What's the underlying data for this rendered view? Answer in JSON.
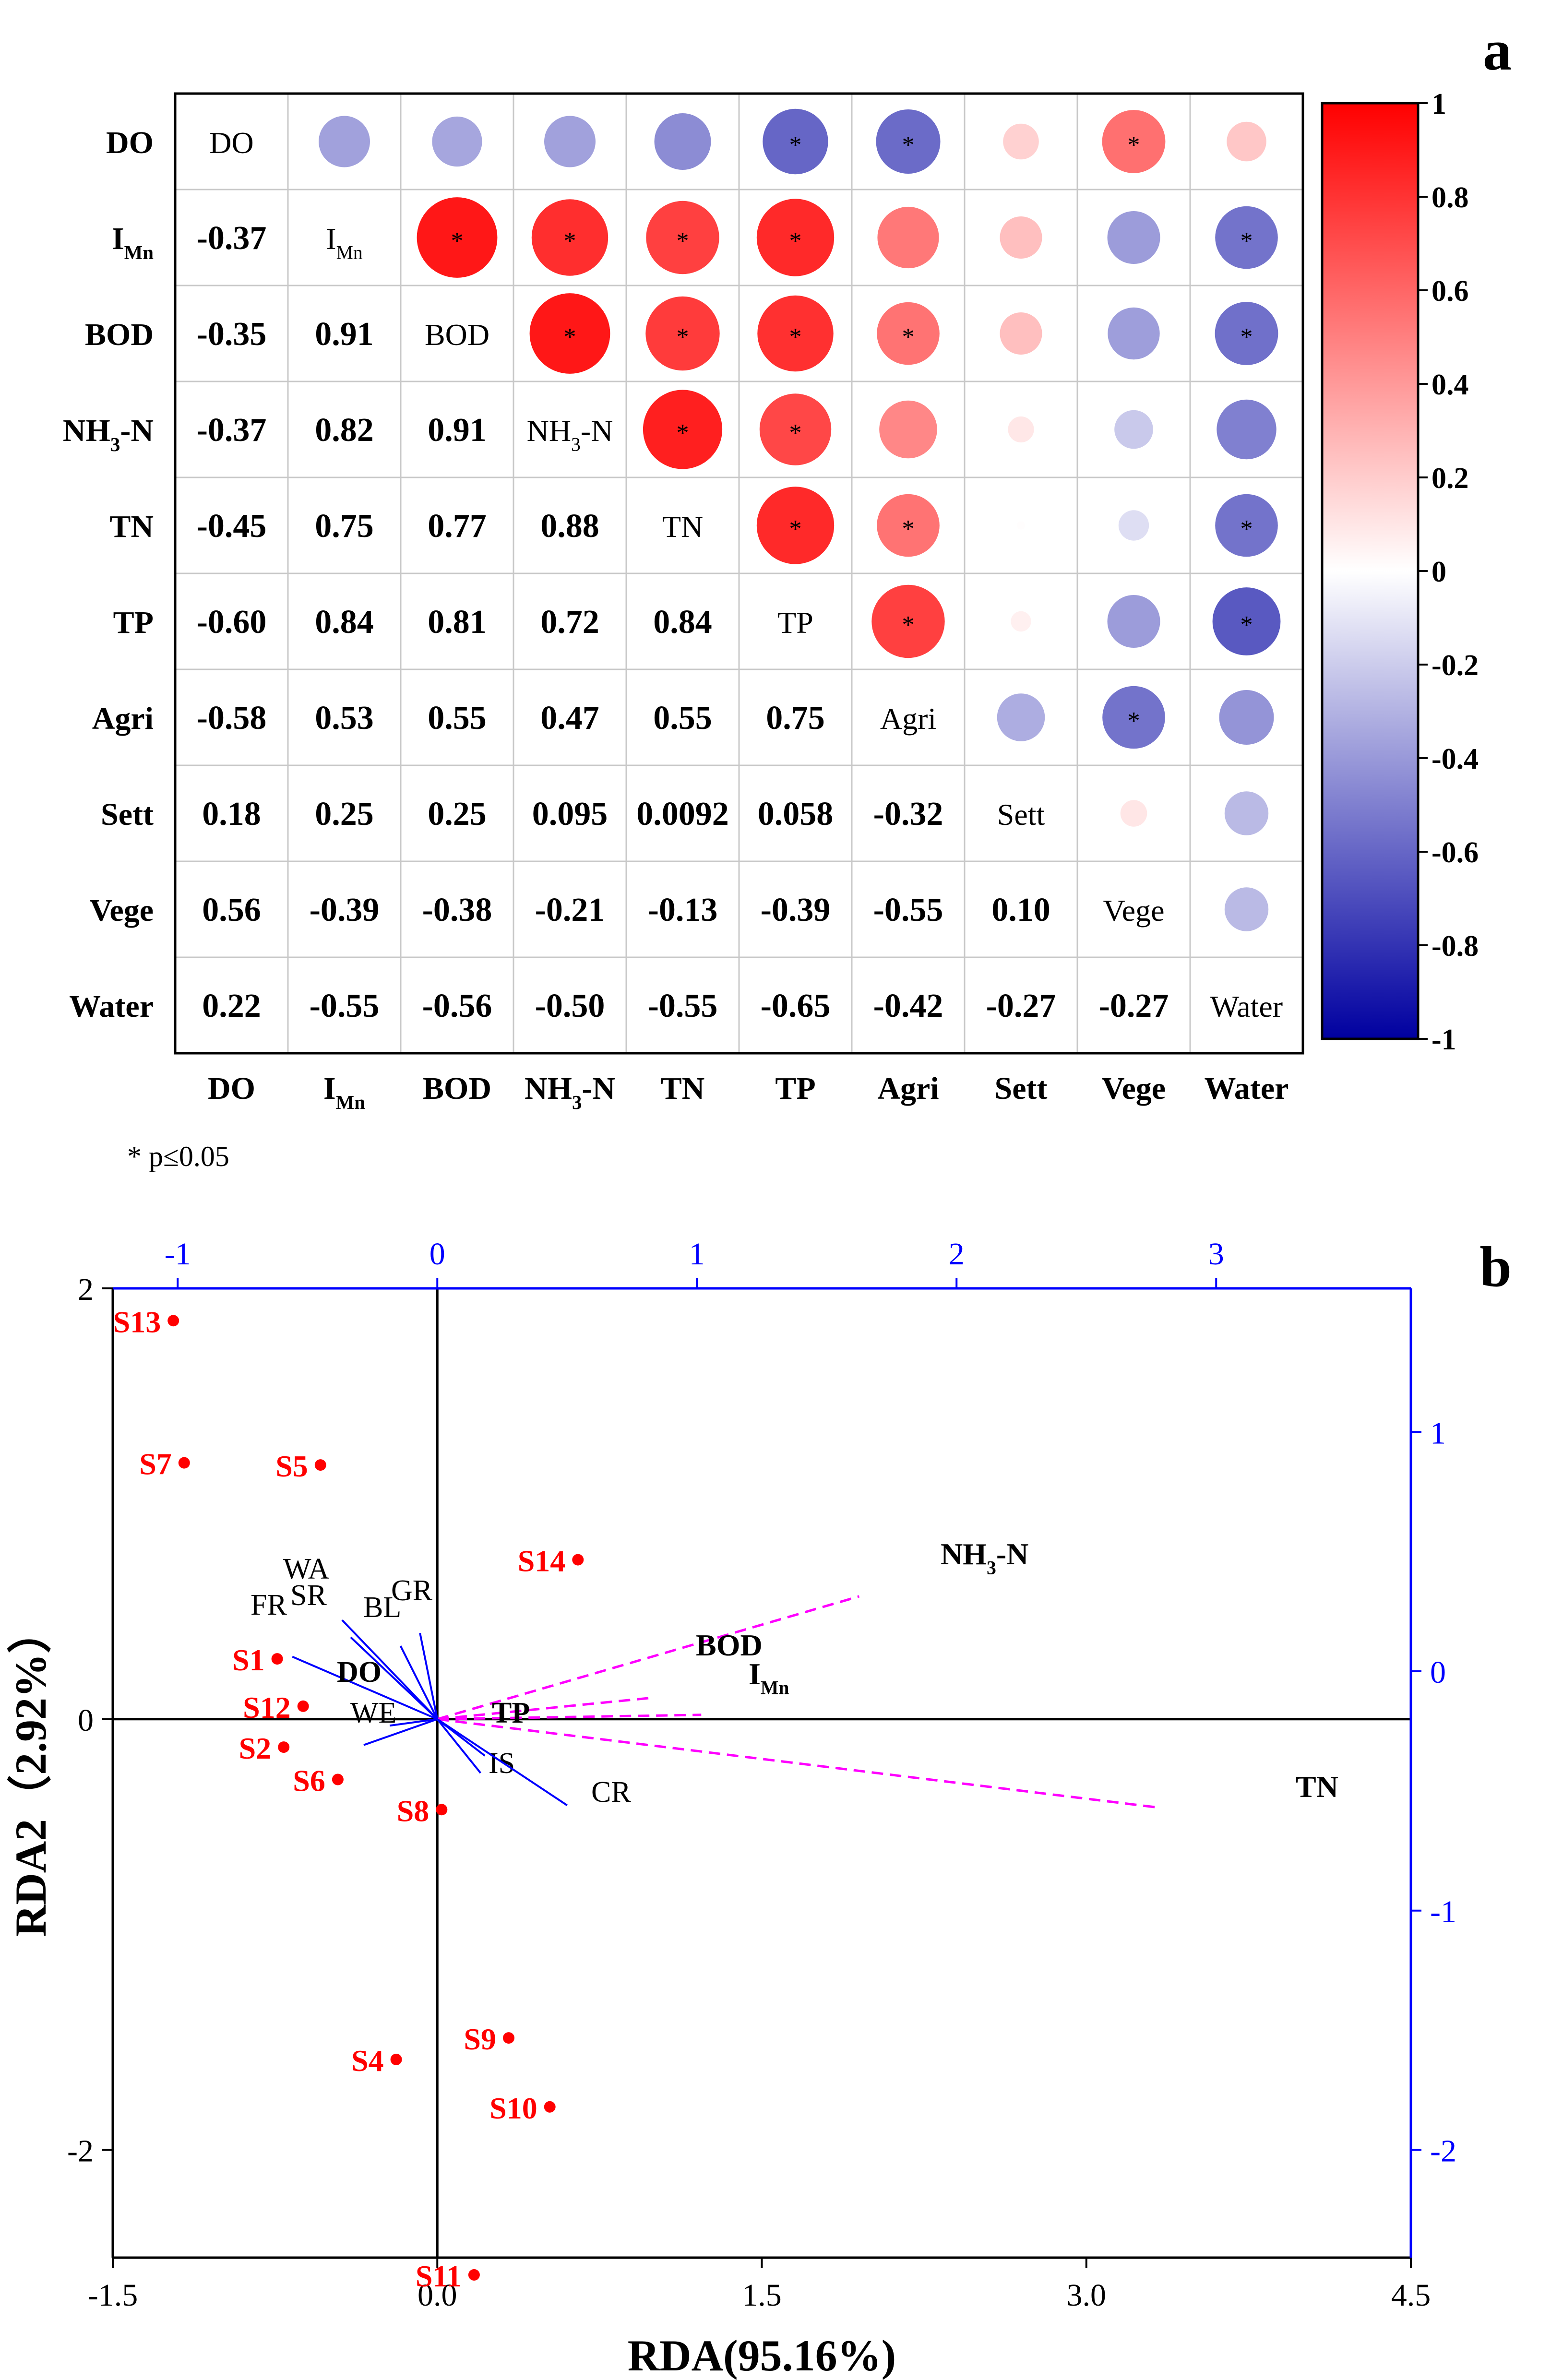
{
  "panels": {
    "a": {
      "letter": "a"
    },
    "b": {
      "letter": "b"
    }
  },
  "colors": {
    "positive": "#ff0000",
    "negative": "#0000a0",
    "neutral": "#ffffff",
    "site_points": "#ff0000",
    "top_right_axes": "#0000ff",
    "response_arrows": "#ff00ff",
    "explanatory_arrows": "#0000ff"
  },
  "chart_data": [
    {
      "panel": "a",
      "type": "heatmap",
      "variables": [
        "DO",
        "I_Mn",
        "BOD",
        "NH3-N",
        "TN",
        "TP",
        "Agri",
        "Sett",
        "Vege",
        "Water"
      ],
      "labels": [
        {
          "text": "DO",
          "sub": "",
          "tail": ""
        },
        {
          "text": "I",
          "sub": "Mn",
          "tail": ""
        },
        {
          "text": "BOD",
          "sub": "",
          "tail": ""
        },
        {
          "text": "NH",
          "sub": "3",
          "tail": "-N"
        },
        {
          "text": "TN",
          "sub": "",
          "tail": ""
        },
        {
          "text": "TP",
          "sub": "",
          "tail": ""
        },
        {
          "text": "Agri",
          "sub": "",
          "tail": ""
        },
        {
          "text": "Sett",
          "sub": "",
          "tail": ""
        },
        {
          "text": "Vege",
          "sub": "",
          "tail": ""
        },
        {
          "text": "Water",
          "sub": "",
          "tail": ""
        }
      ],
      "lower_values": [
        [
          null,
          null,
          null,
          null,
          null,
          null,
          null,
          null,
          null,
          null
        ],
        [
          "-0.37",
          null,
          null,
          null,
          null,
          null,
          null,
          null,
          null,
          null
        ],
        [
          "-0.35",
          "0.91",
          null,
          null,
          null,
          null,
          null,
          null,
          null,
          null
        ],
        [
          "-0.37",
          "0.82",
          "0.91",
          null,
          null,
          null,
          null,
          null,
          null,
          null
        ],
        [
          "-0.45",
          "0.75",
          "0.77",
          "0.88",
          null,
          null,
          null,
          null,
          null,
          null
        ],
        [
          "-0.60",
          "0.84",
          "0.81",
          "0.72",
          "0.84",
          null,
          null,
          null,
          null,
          null
        ],
        [
          "-0.58",
          "0.53",
          "0.55",
          "0.47",
          "0.55",
          "0.75",
          null,
          null,
          null,
          null
        ],
        [
          "0.18",
          "0.25",
          "0.25",
          "0.095",
          "0.0092",
          "0.058",
          "-0.32",
          null,
          null,
          null
        ],
        [
          "0.56",
          "-0.39",
          "-0.38",
          "-0.21",
          "-0.13",
          "-0.39",
          "-0.55",
          "0.10",
          null,
          null
        ],
        [
          "0.22",
          "-0.55",
          "-0.56",
          "-0.50",
          "-0.55",
          "-0.65",
          "-0.42",
          "-0.27",
          "-0.27",
          null
        ]
      ],
      "significant_pairs": [
        [
          0,
          5
        ],
        [
          0,
          6
        ],
        [
          0,
          8
        ],
        [
          1,
          2
        ],
        [
          1,
          3
        ],
        [
          1,
          4
        ],
        [
          1,
          5
        ],
        [
          1,
          9
        ],
        [
          2,
          3
        ],
        [
          2,
          4
        ],
        [
          2,
          5
        ],
        [
          2,
          6
        ],
        [
          2,
          9
        ],
        [
          3,
          4
        ],
        [
          3,
          5
        ],
        [
          4,
          5
        ],
        [
          4,
          6
        ],
        [
          4,
          9
        ],
        [
          5,
          6
        ],
        [
          5,
          9
        ],
        [
          6,
          8
        ]
      ],
      "significance_mark": "*",
      "significance_note": "* p≤0.05",
      "colorbar": {
        "range": [
          -1,
          1
        ],
        "tick_labels": [
          "1",
          "0.8",
          "0.6",
          "0.4",
          "0.2",
          "0",
          "-0.2",
          "-0.4",
          "-0.6",
          "-0.8",
          "-1"
        ]
      }
    },
    {
      "panel": "b",
      "type": "scatter",
      "xlabel": "RDA(95.16%)",
      "ylabel": "RDA2（2.92%）",
      "xlim": [
        -1.5,
        4.5
      ],
      "ylim": [
        -2.5,
        2.0
      ],
      "xticks": [
        -1.5,
        0.0,
        1.5,
        3.0,
        4.5
      ],
      "xtick_labels": [
        "-1.5",
        "0.0",
        "1.5",
        "3.0",
        "4.5"
      ],
      "yticks": [
        2,
        0,
        -2
      ],
      "ytick_labels": [
        "2",
        "0",
        "-2"
      ],
      "top_axis": {
        "range": [
          -1.25,
          3.75
        ],
        "ticks": [
          -1,
          0,
          1,
          2,
          3
        ],
        "tick_labels": [
          "-1",
          "0",
          "1",
          "2",
          "3"
        ]
      },
      "right_axis": {
        "range": [
          -2.45,
          1.6
        ],
        "ticks": [
          1,
          0,
          -1,
          -2
        ],
        "tick_labels": [
          "1",
          "0",
          "-1",
          "-2"
        ]
      },
      "sites": [
        {
          "name": "S13",
          "x": -1.22,
          "y": 1.85
        },
        {
          "name": "S7",
          "x": -1.17,
          "y": 1.19
        },
        {
          "name": "S5",
          "x": -0.54,
          "y": 1.18
        },
        {
          "name": "S14",
          "x": 0.65,
          "y": 0.74
        },
        {
          "name": "S1",
          "x": -0.74,
          "y": 0.28
        },
        {
          "name": "S12",
          "x": -0.62,
          "y": 0.06
        },
        {
          "name": "S2",
          "x": -0.71,
          "y": -0.13
        },
        {
          "name": "S6",
          "x": -0.46,
          "y": -0.28
        },
        {
          "name": "S8",
          "x": 0.02,
          "y": -0.42
        },
        {
          "name": "S4",
          "x": -0.19,
          "y": -1.58
        },
        {
          "name": "S9",
          "x": 0.33,
          "y": -1.48
        },
        {
          "name": "S10",
          "x": 0.52,
          "y": -1.8
        },
        {
          "name": "S11",
          "x": 0.17,
          "y": -2.58
        }
      ],
      "response_arrows": [
        {
          "name": "NH",
          "sub": "3",
          "tail": "-N",
          "x": 1.95,
          "y": 0.57
        },
        {
          "name": "BOD",
          "sub": "",
          "tail": "",
          "x": 1.0,
          "y": 0.1
        },
        {
          "name": "I",
          "sub": "Mn",
          "tail": "",
          "x": 1.22,
          "y": 0.02
        },
        {
          "name": "TN",
          "sub": "",
          "tail": "",
          "x": 3.33,
          "y": -0.41
        }
      ],
      "explanatory_arrows": [
        {
          "name": "WA",
          "x": -0.44,
          "y": 0.46
        },
        {
          "name": "SR",
          "x": -0.4,
          "y": 0.38
        },
        {
          "name": "FR",
          "x": -0.67,
          "y": 0.29
        },
        {
          "name": "BL",
          "x": -0.17,
          "y": 0.34
        },
        {
          "name": "GR",
          "x": -0.08,
          "y": 0.4
        },
        {
          "name": "DO",
          "x": -0.22,
          "y": -0.03
        },
        {
          "name": "WE",
          "x": -0.34,
          "y": -0.12
        },
        {
          "name": "TP",
          "x": 0.22,
          "y": -0.17
        },
        {
          "name": "IS",
          "x": 0.2,
          "y": -0.25
        },
        {
          "name": "CR",
          "x": 0.6,
          "y": -0.4
        }
      ]
    }
  ]
}
